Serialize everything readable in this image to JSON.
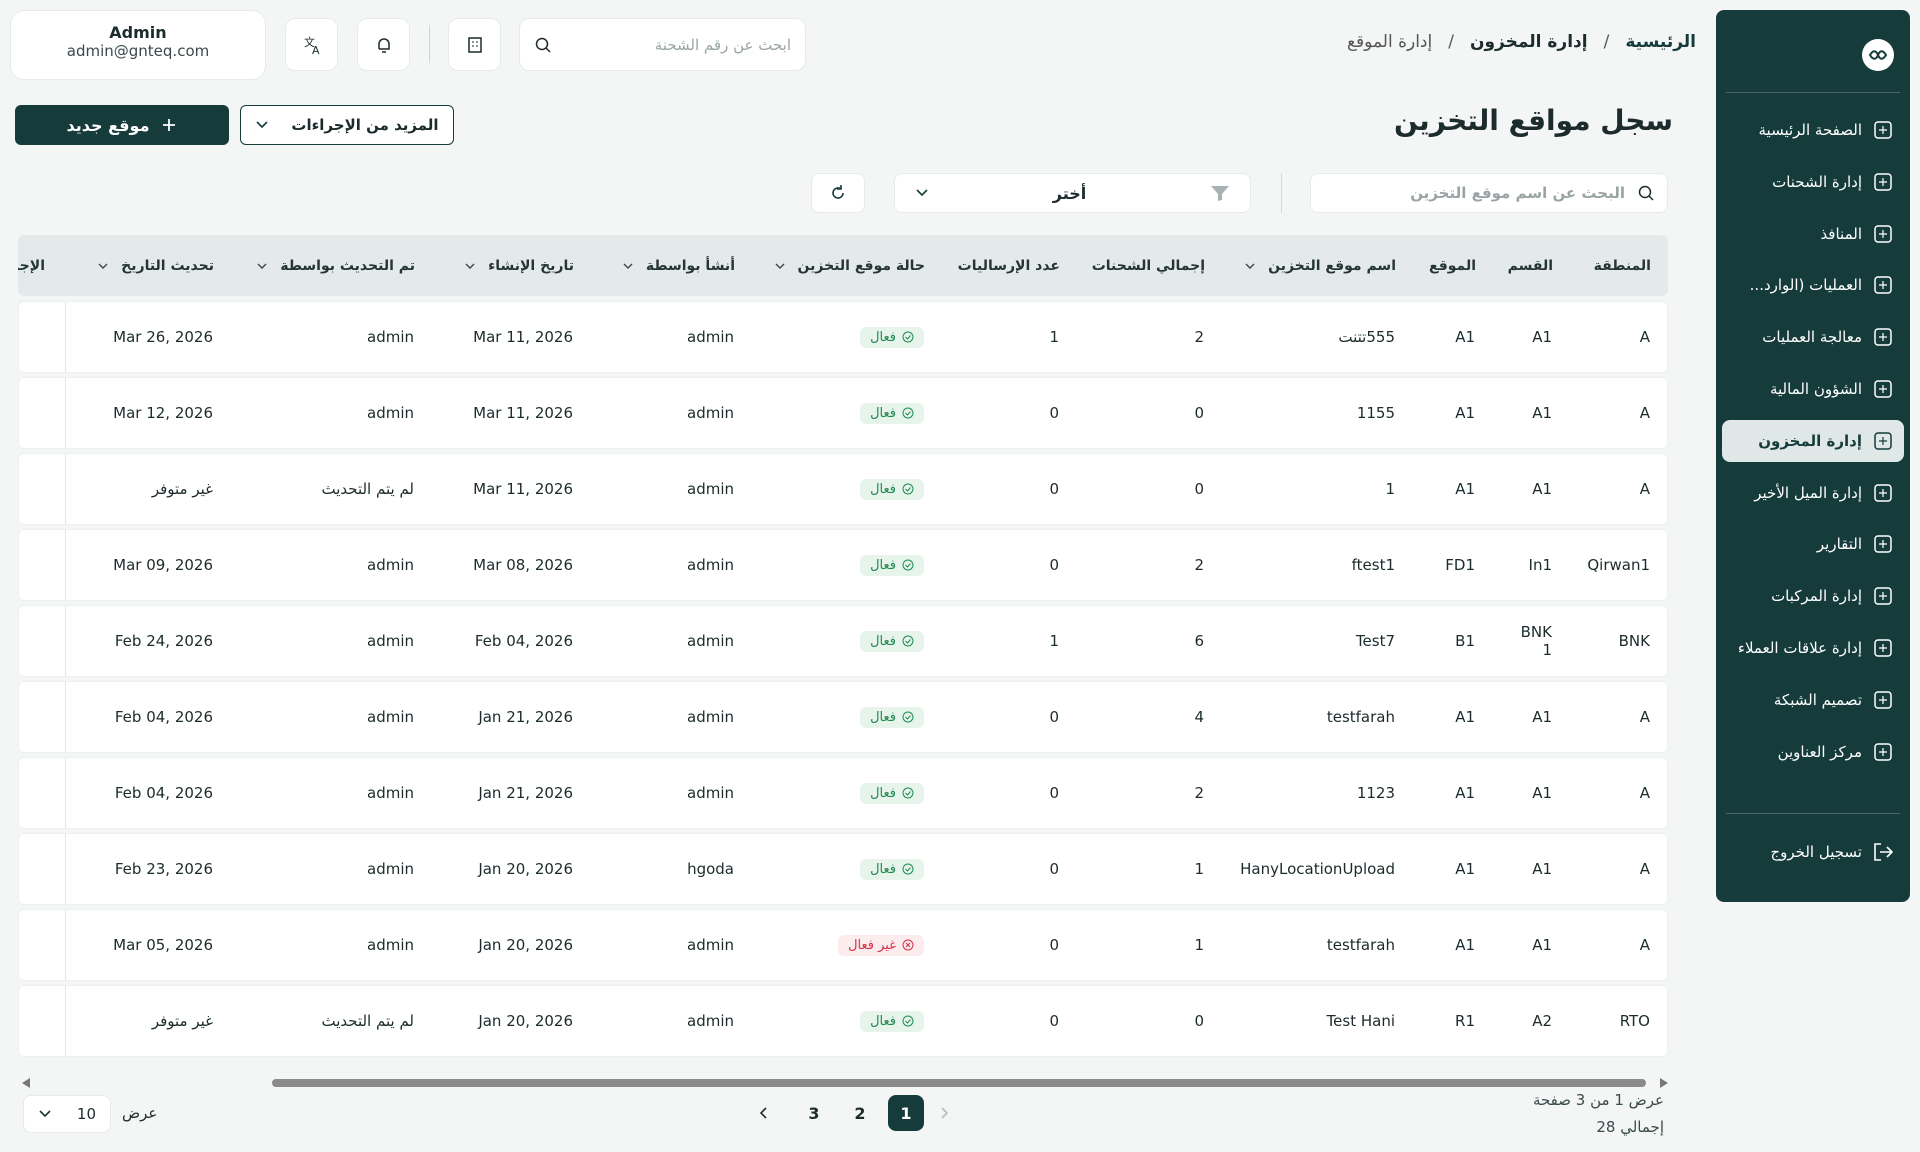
{
  "user": {
    "name": "Admin",
    "email": "admin@gnteq.com"
  },
  "header_search": "ابحث عن رقم الشحنة",
  "breadcrumb": {
    "items": [
      "الرئيسية",
      "إدارة المخزون",
      "إدارة الموقع"
    ],
    "separator": "/"
  },
  "sidebar": {
    "items": [
      "الصفحة الرئيسية",
      "إدارة الشحنات",
      "المنافذ",
      "العمليات (الوارد...",
      "معالجة العمليات",
      "الشؤون المالية",
      "إدارة المخزون",
      "إدارة الميل الأخير",
      "التقارير",
      "إدارة المركبات",
      "إدارة علاقات العملاء",
      "تصميم الشبكة",
      "مركز العناوين"
    ],
    "active_index": 6,
    "logout": "تسجيل الخروج"
  },
  "page_title": "سجل مواقع التخزين",
  "actions": {
    "more": "المزيد من الإجراءات",
    "new": "موقع جديد"
  },
  "filters": {
    "search": "البحث عن اسم موقع التخزين",
    "select": "أختر"
  },
  "table": {
    "columns": [
      "المنطقة",
      "القسم",
      "الموقع",
      "اسم موقع التخزين",
      "إجمالي الشحنات",
      "عدد الإرسالیات",
      "حالة موقع التخزين",
      "أنشأ بواسطة",
      "تاريخ الإنشاء",
      "تم التحديث بواسطة",
      "تحديث التاريخ",
      "الإجراءات"
    ],
    "sortable": [
      false,
      false,
      false,
      true,
      false,
      false,
      true,
      true,
      true,
      true,
      true,
      false
    ],
    "active_status": "فعال",
    "rows": [
      [
        "A",
        "A1",
        "A1",
        "555تتنت",
        2,
        1,
        "فعال",
        "admin",
        "Mar 11, 2026",
        "admin",
        "Mar 26, 2026"
      ],
      [
        "A",
        "A1",
        "A1",
        "1155",
        0,
        0,
        "فعال",
        "admin",
        "Mar 11, 2026",
        "admin",
        "Mar 12, 2026"
      ],
      [
        "A",
        "A1",
        "A1",
        "1",
        0,
        0,
        "فعال",
        "admin",
        "Mar 11, 2026",
        "لم يتم التحديث",
        "غير متوفر"
      ],
      [
        "Qirwan1",
        "In1",
        "FD1",
        "ftest1",
        2,
        0,
        "فعال",
        "admin",
        "Mar 08, 2026",
        "admin",
        "Mar 09, 2026"
      ],
      [
        "BNK",
        "BNK 1",
        "B1",
        "Test7",
        6,
        1,
        "فعال",
        "admin",
        "Feb 04, 2026",
        "admin",
        "Feb 24, 2026"
      ],
      [
        "A",
        "A1",
        "A1",
        "testfarah",
        4,
        0,
        "فعال",
        "admin",
        "Jan 21, 2026",
        "admin",
        "Feb 04, 2026"
      ],
      [
        "A",
        "A1",
        "A1",
        "1123",
        2,
        0,
        "فعال",
        "admin",
        "Jan 21, 2026",
        "admin",
        "Feb 04, 2026"
      ],
      [
        "A",
        "A1",
        "A1",
        "HanyLocationUpload",
        1,
        0,
        "فعال",
        "hgoda",
        "Jan 20, 2026",
        "admin",
        "Feb 23, 2026"
      ],
      [
        "A",
        "A1",
        "A1",
        "testfarah",
        1,
        0,
        "غير فعال",
        "admin",
        "Jan 20, 2026",
        "admin",
        "Mar 05, 2026"
      ],
      [
        "RTO",
        "A2",
        "R1",
        "Test Hani",
        0,
        0,
        "فعال",
        "admin",
        "Jan 20, 2026",
        "لم يتم التحديث",
        "غير متوفر"
      ]
    ]
  },
  "pagination": {
    "summary": "عرض 1 من 3 صفحة",
    "total": "إجمالي 28",
    "pages": [
      1,
      2,
      3
    ],
    "current": 1,
    "page_size_label": "عرض",
    "page_size": 10
  }
}
